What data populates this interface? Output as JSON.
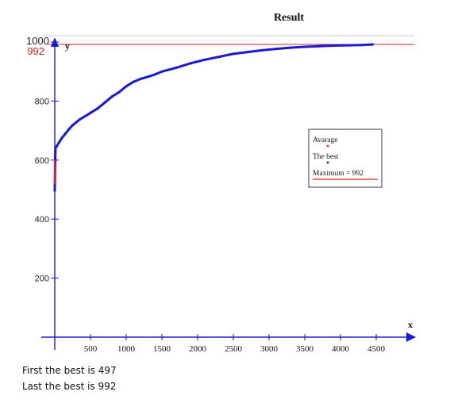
{
  "chart_data": {
    "type": "line",
    "title": "Result",
    "xlabel": "x",
    "ylabel": "y",
    "xlim": [
      -100,
      5000
    ],
    "ylim": [
      0,
      1000
    ],
    "x_ticks": [
      500,
      1000,
      1500,
      2000,
      2500,
      3000,
      3500,
      4000,
      4500
    ],
    "y_ticks": [
      200,
      400,
      600,
      800,
      1000
    ],
    "highlight_tick": "992",
    "series": [
      {
        "name": "The best",
        "color": "#1a1ad0",
        "x": [
          0,
          5,
          10,
          30,
          60,
          100,
          150,
          200,
          250,
          300,
          350,
          400,
          500,
          600,
          700,
          800,
          900,
          1000,
          1100,
          1200,
          1300,
          1400,
          1500,
          1700,
          1900,
          2100,
          2300,
          2500,
          2700,
          2900,
          3100,
          3300,
          3500,
          3700,
          3900,
          4100,
          4300,
          4450
        ],
        "y": [
          497,
          600,
          640,
          648,
          660,
          675,
          690,
          705,
          718,
          728,
          738,
          745,
          760,
          775,
          795,
          815,
          830,
          850,
          865,
          875,
          882,
          890,
          900,
          913,
          928,
          940,
          950,
          960,
          966,
          972,
          977,
          981,
          984,
          986,
          988,
          989,
          990,
          992
        ]
      },
      {
        "name": "Avarage",
        "color": "#e02020",
        "x": [
          0,
          0,
          0
        ],
        "y": [
          520,
          560,
          600
        ]
      }
    ],
    "reference_lines": [
      {
        "name": "Maximum = 992",
        "y": 992,
        "color": "#e02020"
      }
    ],
    "legend": {
      "position": "right",
      "entries": [
        "Avarage",
        "The best",
        "Maximum = 992"
      ]
    }
  },
  "notes": {
    "first_best": "First the best is 497",
    "last_best": "Last the best is 992"
  }
}
